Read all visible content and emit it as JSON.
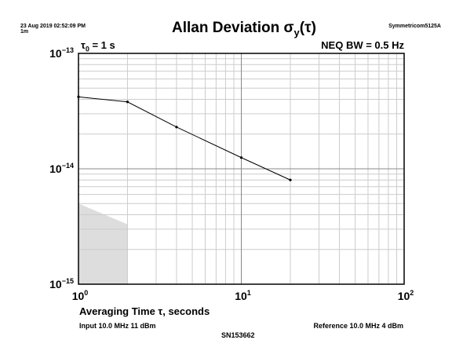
{
  "header": {
    "timestamp": "23 Aug 2019 02:52:09 PM",
    "span": "1m",
    "title_main": "Allan Deviation σ",
    "title_sub": "y",
    "title_arg": "(τ)",
    "device": "Symmetricom5125A",
    "tau0_prefix": "τ",
    "tau0_sub": "0",
    "tau0_value": " = 1 s",
    "neq_bw": "NEQ BW = 0.5 Hz"
  },
  "footer": {
    "input": "Input 10.0 MHz 11 dBm",
    "reference": "Reference 10.0 MHz 4 dBm",
    "serial": "SN153662"
  },
  "chart_data": {
    "type": "line",
    "xscale": "log",
    "yscale": "log",
    "xlim": [
      1,
      100
    ],
    "ylim": [
      1e-15,
      1e-13
    ],
    "xlabel": "Averaging Time τ, seconds",
    "grid": true,
    "x_ticks": [
      {
        "base": "10",
        "exp": "0"
      },
      {
        "base": "10",
        "exp": "1"
      },
      {
        "base": "10",
        "exp": "2"
      }
    ],
    "y_ticks": [
      {
        "base": "10",
        "exp": "−13"
      },
      {
        "base": "10",
        "exp": "−14"
      },
      {
        "base": "10",
        "exp": "−15"
      }
    ],
    "series": [
      {
        "x": [
          1,
          2,
          4,
          10,
          20
        ],
        "y": [
          4.2e-14,
          3.8e-14,
          2.3e-14,
          1.25e-14,
          8e-15
        ],
        "color": "#000000"
      }
    ],
    "noise_floor": {
      "x": [
        1,
        2,
        2,
        1
      ],
      "y": [
        5e-15,
        3.3e-15,
        1e-15,
        1e-15
      ],
      "color": "#dddddd"
    }
  }
}
